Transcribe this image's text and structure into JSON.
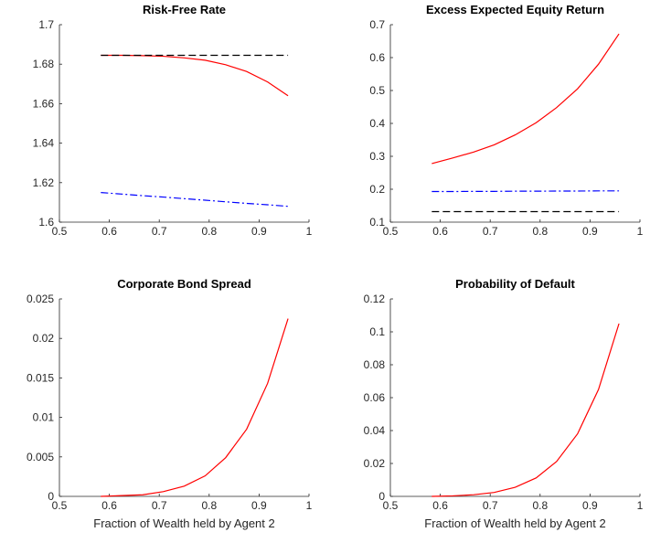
{
  "chart_data": [
    {
      "type": "line",
      "title": "Risk-Free Rate",
      "x": [
        0.583,
        0.625,
        0.667,
        0.708,
        0.75,
        0.792,
        0.833,
        0.875,
        0.917,
        0.958
      ],
      "series": [
        {
          "color": "#ff0000",
          "linestyle": "solid",
          "values": [
            1.6845,
            1.6845,
            1.6843,
            1.684,
            1.6832,
            1.682,
            1.6797,
            1.6763,
            1.671,
            1.664
          ]
        },
        {
          "color": "#000000",
          "linestyle": "dashed",
          "values": [
            1.6845,
            1.6845,
            1.6845,
            1.6845,
            1.6845,
            1.6845,
            1.6845,
            1.6845,
            1.6845,
            1.6845
          ]
        },
        {
          "color": "#0000ff",
          "linestyle": "dashdot",
          "values": [
            1.615,
            1.6142,
            1.6134,
            1.6127,
            1.6119,
            1.6111,
            1.6103,
            1.6095,
            1.6088,
            1.608
          ]
        }
      ],
      "xlim": [
        0.5,
        1
      ],
      "xticks": [
        0.5,
        0.6,
        0.7,
        0.8,
        0.9,
        1
      ],
      "ylim": [
        1.6,
        1.7
      ],
      "yticks": [
        1.6,
        1.62,
        1.64,
        1.66,
        1.68,
        1.7
      ]
    },
    {
      "type": "line",
      "title": "Excess Expected Equity Return",
      "x": [
        0.583,
        0.625,
        0.667,
        0.708,
        0.75,
        0.792,
        0.833,
        0.875,
        0.917,
        0.958
      ],
      "series": [
        {
          "color": "#ff0000",
          "linestyle": "solid",
          "values": [
            0.278,
            0.295,
            0.313,
            0.335,
            0.365,
            0.402,
            0.448,
            0.505,
            0.58,
            0.672
          ]
        },
        {
          "color": "#0000ff",
          "linestyle": "dashdot",
          "values": [
            0.193,
            0.193,
            0.1935,
            0.1935,
            0.194,
            0.194,
            0.1945,
            0.1945,
            0.195,
            0.195
          ]
        },
        {
          "color": "#000000",
          "linestyle": "dashed",
          "values": [
            0.132,
            0.132,
            0.132,
            0.132,
            0.132,
            0.132,
            0.132,
            0.132,
            0.132,
            0.132
          ]
        }
      ],
      "xlim": [
        0.5,
        1
      ],
      "xticks": [
        0.5,
        0.6,
        0.7,
        0.8,
        0.9,
        1
      ],
      "ylim": [
        0.1,
        0.7
      ],
      "yticks": [
        0.1,
        0.2,
        0.3,
        0.4,
        0.5,
        0.6,
        0.7
      ]
    },
    {
      "type": "line",
      "title": "Corporate Bond Spread",
      "x_label": "Fraction of Wealth held by Agent 2",
      "x": [
        0.583,
        0.625,
        0.667,
        0.708,
        0.75,
        0.792,
        0.833,
        0.875,
        0.917,
        0.958
      ],
      "series": [
        {
          "color": "#ff0000",
          "linestyle": "solid",
          "values": [
            0,
            0.0001,
            0.0002,
            0.0006,
            0.0013,
            0.0026,
            0.0049,
            0.0085,
            0.0143,
            0.0225
          ]
        }
      ],
      "xlim": [
        0.5,
        1
      ],
      "xticks": [
        0.5,
        0.6,
        0.7,
        0.8,
        0.9,
        1
      ],
      "ylim": [
        0,
        0.025
      ],
      "yticks": [
        0,
        0.005,
        0.01,
        0.015,
        0.02,
        0.025
      ]
    },
    {
      "type": "line",
      "title": "Probability of Default",
      "x_label": "Fraction of Wealth held by Agent 2",
      "x": [
        0.583,
        0.625,
        0.667,
        0.708,
        0.75,
        0.792,
        0.833,
        0.875,
        0.917,
        0.958
      ],
      "series": [
        {
          "color": "#ff0000",
          "linestyle": "solid",
          "values": [
            0,
            0.0003,
            0.001,
            0.0024,
            0.0055,
            0.0112,
            0.0212,
            0.038,
            0.065,
            0.105
          ]
        }
      ],
      "xlim": [
        0.5,
        1
      ],
      "xticks": [
        0.5,
        0.6,
        0.7,
        0.8,
        0.9,
        1
      ],
      "ylim": [
        0,
        0.12
      ],
      "yticks": [
        0,
        0.02,
        0.04,
        0.06,
        0.08,
        0.1,
        0.12
      ]
    }
  ]
}
